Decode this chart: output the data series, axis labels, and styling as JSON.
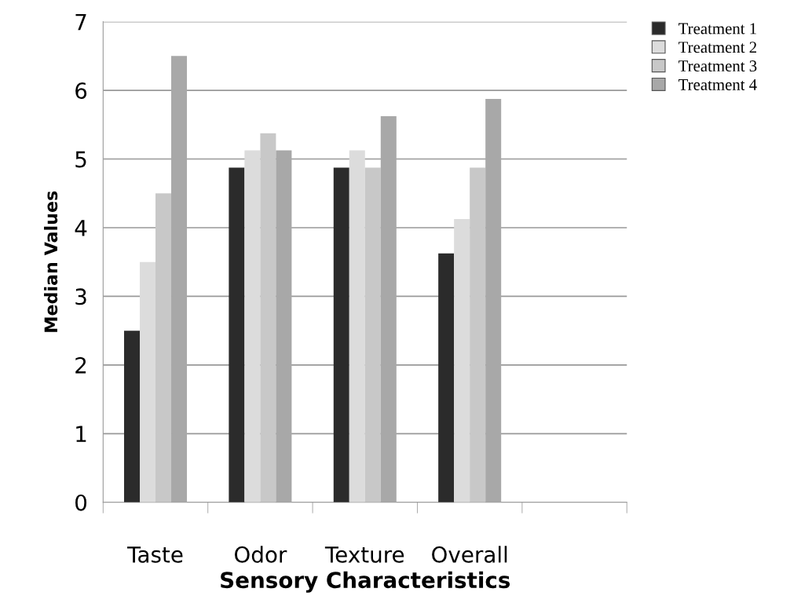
{
  "chart_data": {
    "type": "bar",
    "xlabel": "Sensory Characteristics",
    "ylabel": "Median Values",
    "categories": [
      "Taste",
      "Odor",
      "Texture",
      "Overall",
      null
    ],
    "series": [
      {
        "name": "Treatment 1",
        "color": "#2b2b2b",
        "values": [
          2.5,
          4.875,
          4.875,
          3.625,
          null
        ]
      },
      {
        "name": "Treatment 2",
        "color": "#dcdcdc",
        "values": [
          3.5,
          5.125,
          5.125,
          4.125,
          null
        ]
      },
      {
        "name": "Treatment 3",
        "color": "#c8c8c8",
        "values": [
          4.5,
          5.375,
          4.875,
          4.875,
          null
        ]
      },
      {
        "name": "Treatment 4",
        "color": "#a8a8a8",
        "values": [
          6.5,
          5.125,
          5.625,
          5.875,
          null
        ]
      }
    ],
    "ylim": [
      0,
      7
    ],
    "yticks": [
      0,
      1,
      2,
      3,
      4,
      5,
      6,
      7
    ],
    "grid": "y",
    "legend": "top right"
  }
}
